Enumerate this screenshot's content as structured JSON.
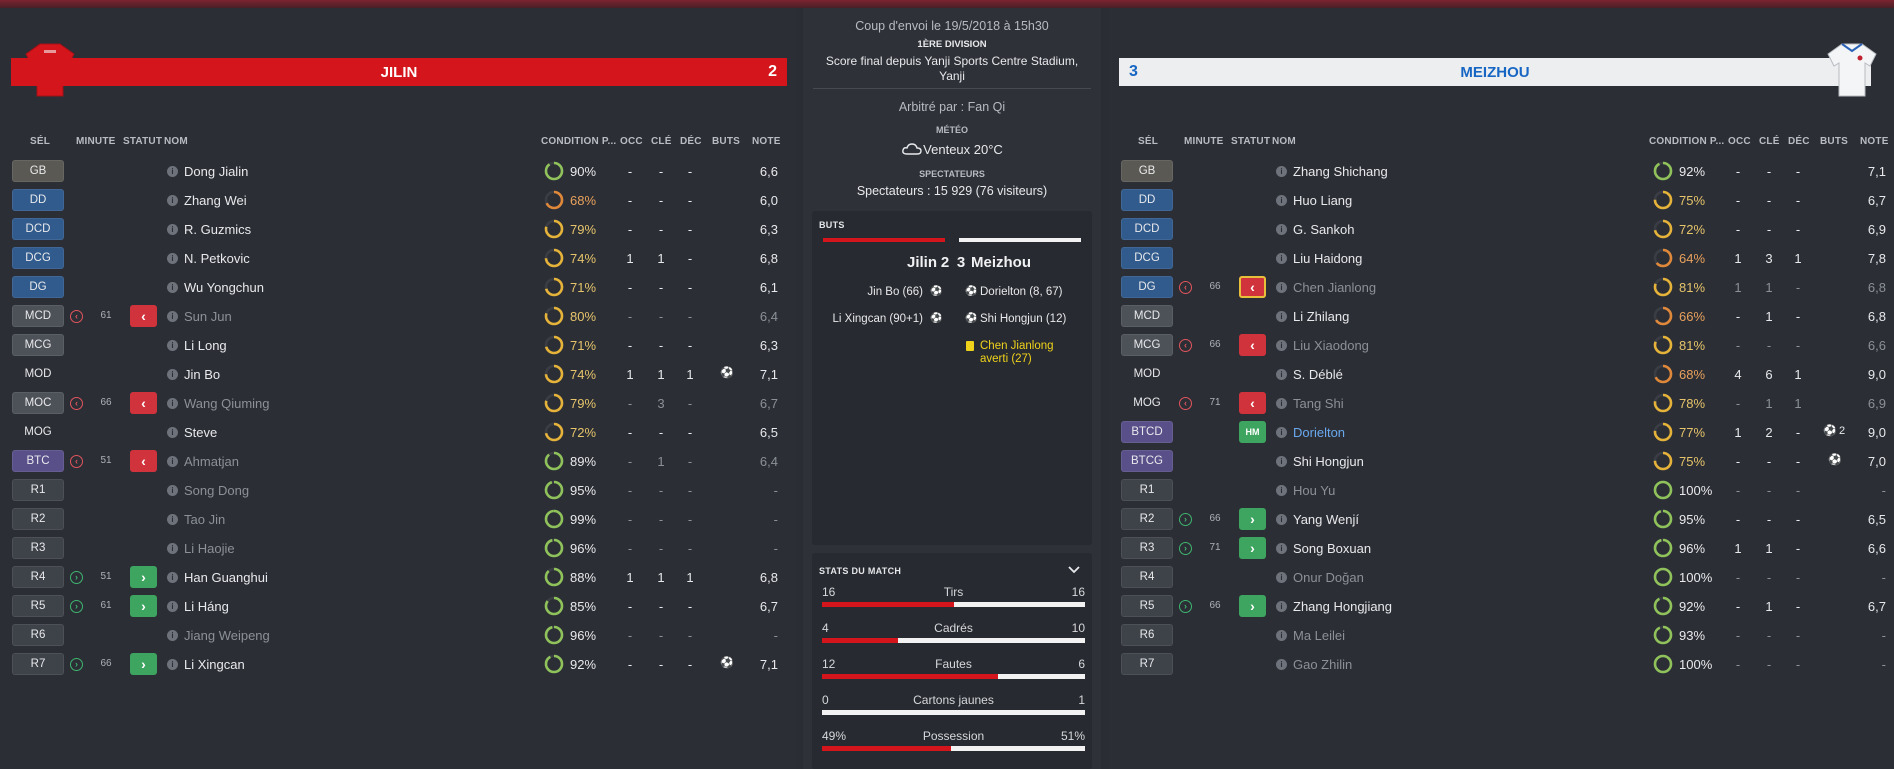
{
  "header": {
    "kickoff": "Coup d'envoi le 19/5/2018 à 15h30",
    "division": "1ÈRE DIVISION",
    "final_line1": "Score final depuis Yanji Sports Centre Stadium,",
    "final_line2": "Yanji",
    "referee": "Arbitré par : Fan Qi",
    "weather_label": "MÉTÉO",
    "weather": "Venteux 20°C",
    "spectators_label": "SPECTATEURS",
    "spectators": "Spectateurs : 15 929 (76 visiteurs)"
  },
  "columns": {
    "sel": "SÉL",
    "minute": "MINUTE",
    "statut": "STATUT",
    "nom": "NOM",
    "condition": "CONDITION P...",
    "occ": "OCC",
    "cle": "CLÉ",
    "dec": "DÉC",
    "buts": "BUTS",
    "note": "NOTE"
  },
  "home": {
    "name": "JILIN",
    "score": "2",
    "kit_color": "#d4151c",
    "players": [
      {
        "pos": "GB",
        "type": "gb",
        "name": "Dong Jialin",
        "cond": "90%",
        "cond_value": 90,
        "occ": "-",
        "cle": "-",
        "dec": "-",
        "goals": "",
        "note": "6,6"
      },
      {
        "pos": "DD",
        "type": "def",
        "name": "Zhang Wei",
        "cond": "68%",
        "cond_value": 68,
        "occ": "-",
        "cle": "-",
        "dec": "-",
        "goals": "",
        "note": "6,0"
      },
      {
        "pos": "DCD",
        "type": "def",
        "name": "R. Guzmics",
        "cond": "79%",
        "cond_value": 79,
        "occ": "-",
        "cle": "-",
        "dec": "-",
        "goals": "",
        "note": "6,3"
      },
      {
        "pos": "DCG",
        "type": "def",
        "name": "N. Petkovic",
        "cond": "74%",
        "cond_value": 74,
        "occ": "1",
        "cle": "1",
        "dec": "-",
        "goals": "",
        "note": "6,8"
      },
      {
        "pos": "DG",
        "type": "def",
        "name": "Wu Yongchun",
        "cond": "71%",
        "cond_value": 71,
        "occ": "-",
        "cle": "-",
        "dec": "-",
        "goals": "",
        "note": "6,1"
      },
      {
        "pos": "MCD",
        "type": "mid",
        "name": "Sun Jun",
        "sub": "out",
        "minute": "61",
        "dim": true,
        "cond": "80%",
        "cond_value": 80,
        "occ": "-",
        "cle": "-",
        "dec": "-",
        "goals": "",
        "note": "6,4"
      },
      {
        "pos": "MCG",
        "type": "mid",
        "name": "Li Long",
        "cond": "71%",
        "cond_value": 71,
        "occ": "-",
        "cle": "-",
        "dec": "-",
        "goals": "",
        "note": "6,3"
      },
      {
        "pos": "MOD",
        "type": "mod",
        "name": "Jin Bo",
        "cond": "74%",
        "cond_value": 74,
        "occ": "1",
        "cle": "1",
        "dec": "1",
        "goals": "1",
        "note": "7,1"
      },
      {
        "pos": "MOC",
        "type": "mid",
        "name": "Wang Qiuming",
        "sub": "out",
        "minute": "66",
        "dim": true,
        "cond": "79%",
        "cond_value": 79,
        "occ": "-",
        "cle": "3",
        "dec": "-",
        "goals": "",
        "note": "6,7"
      },
      {
        "pos": "MOG",
        "type": "mod",
        "name": "Steve",
        "cond": "72%",
        "cond_value": 72,
        "occ": "-",
        "cle": "-",
        "dec": "-",
        "goals": "",
        "note": "6,5"
      },
      {
        "pos": "BTC",
        "type": "att",
        "name": "Ahmatjan",
        "sub": "out",
        "minute": "51",
        "dim": true,
        "cond": "89%",
        "cond_value": 89,
        "occ": "-",
        "cle": "1",
        "dec": "-",
        "goals": "",
        "note": "6,4"
      },
      {
        "pos": "R1",
        "type": "res",
        "name": "Song Dong",
        "dim": true,
        "cond": "95%",
        "cond_value": 95,
        "occ": "-",
        "cle": "-",
        "dec": "-",
        "goals": "",
        "note": "-"
      },
      {
        "pos": "R2",
        "type": "res",
        "name": "Tao Jin",
        "dim": true,
        "cond": "99%",
        "cond_value": 99,
        "occ": "-",
        "cle": "-",
        "dec": "-",
        "goals": "",
        "note": "-"
      },
      {
        "pos": "R3",
        "type": "res",
        "name": "Li Haojie",
        "dim": true,
        "cond": "96%",
        "cond_value": 96,
        "occ": "-",
        "cle": "-",
        "dec": "-",
        "goals": "",
        "note": "-"
      },
      {
        "pos": "R4",
        "type": "res",
        "name": "Han Guanghui",
        "sub": "in",
        "minute": "51",
        "cond": "88%",
        "cond_value": 88,
        "occ": "1",
        "cle": "1",
        "dec": "1",
        "goals": "",
        "note": "6,8"
      },
      {
        "pos": "R5",
        "type": "res",
        "name": "Li Háng",
        "sub": "in",
        "minute": "61",
        "cond": "85%",
        "cond_value": 85,
        "occ": "-",
        "cle": "-",
        "dec": "-",
        "goals": "",
        "note": "6,7"
      },
      {
        "pos": "R6",
        "type": "res",
        "name": "Jiang Weipeng",
        "dim": true,
        "cond": "96%",
        "cond_value": 96,
        "occ": "-",
        "cle": "-",
        "dec": "-",
        "goals": "",
        "note": "-"
      },
      {
        "pos": "R7",
        "type": "res",
        "name": "Li Xingcan",
        "sub": "in",
        "minute": "66",
        "cond": "92%",
        "cond_value": 92,
        "occ": "-",
        "cle": "-",
        "dec": "-",
        "goals": "1",
        "note": "7,1"
      }
    ]
  },
  "away": {
    "name": "MEIZHOU",
    "score": "3",
    "kit_color": "#eceeef",
    "players": [
      {
        "pos": "GB",
        "type": "gb",
        "name": "Zhang Shichang",
        "cond": "92%",
        "cond_value": 92,
        "occ": "-",
        "cle": "-",
        "dec": "-",
        "goals": "",
        "note": "7,1"
      },
      {
        "pos": "DD",
        "type": "def",
        "name": "Huo Liang",
        "cond": "75%",
        "cond_value": 75,
        "occ": "-",
        "cle": "-",
        "dec": "-",
        "goals": "",
        "note": "6,7"
      },
      {
        "pos": "DCD",
        "type": "def",
        "name": "G. Sankoh",
        "cond": "72%",
        "cond_value": 72,
        "occ": "-",
        "cle": "-",
        "dec": "-",
        "goals": "",
        "note": "6,9"
      },
      {
        "pos": "DCG",
        "type": "def",
        "name": "Liu Haidong",
        "cond": "64%",
        "cond_value": 64,
        "occ": "1",
        "cle": "3",
        "dec": "1",
        "goals": "",
        "note": "7,8"
      },
      {
        "pos": "DG",
        "type": "def",
        "name": "Chen Jianlong",
        "sub": "out",
        "minute": "66",
        "selected": true,
        "dim": true,
        "cond": "81%",
        "cond_value": 81,
        "occ": "1",
        "cle": "1",
        "dec": "-",
        "goals": "",
        "note": "6,8"
      },
      {
        "pos": "MCD",
        "type": "mid",
        "name": "Li Zhilang",
        "cond": "66%",
        "cond_value": 66,
        "occ": "-",
        "cle": "1",
        "dec": "-",
        "goals": "",
        "note": "6,8"
      },
      {
        "pos": "MCG",
        "type": "mid",
        "name": "Liu Xiaodong",
        "sub": "out",
        "minute": "66",
        "dim": true,
        "cond": "81%",
        "cond_value": 81,
        "occ": "-",
        "cle": "-",
        "dec": "-",
        "goals": "",
        "note": "6,6"
      },
      {
        "pos": "MOD",
        "type": "mod",
        "name": "S. Déblé",
        "cond": "68%",
        "cond_value": 68,
        "occ": "4",
        "cle": "6",
        "dec": "1",
        "goals": "",
        "note": "9,0"
      },
      {
        "pos": "MOG",
        "type": "mod",
        "name": "Tang Shi",
        "sub": "out",
        "minute": "71",
        "dim": true,
        "cond": "78%",
        "cond_value": 78,
        "occ": "-",
        "cle": "1",
        "dec": "1",
        "goals": "",
        "note": "6,9"
      },
      {
        "pos": "BTCD",
        "type": "att",
        "name": "Dorielton",
        "hm": "HM",
        "blue": true,
        "cond": "77%",
        "cond_value": 77,
        "occ": "1",
        "cle": "2",
        "dec": "-",
        "goals": "2",
        "goals_count": "2",
        "note": "9,0"
      },
      {
        "pos": "BTCG",
        "type": "att",
        "name": "Shi Hongjun",
        "cond": "75%",
        "cond_value": 75,
        "occ": "-",
        "cle": "-",
        "dec": "-",
        "goals": "1",
        "note": "7,0"
      },
      {
        "pos": "R1",
        "type": "res",
        "name": "Hou Yu",
        "dim": true,
        "cond": "100%",
        "cond_value": 100,
        "occ": "-",
        "cle": "-",
        "dec": "-",
        "goals": "",
        "note": "-"
      },
      {
        "pos": "R2",
        "type": "res",
        "name": "Yang Wenjí",
        "sub": "in",
        "minute": "66",
        "cond": "95%",
        "cond_value": 95,
        "occ": "-",
        "cle": "-",
        "dec": "-",
        "goals": "",
        "note": "6,5"
      },
      {
        "pos": "R3",
        "type": "res",
        "name": "Song Boxuan",
        "sub": "in",
        "minute": "71",
        "cond": "96%",
        "cond_value": 96,
        "occ": "1",
        "cle": "1",
        "dec": "-",
        "goals": "",
        "note": "6,6"
      },
      {
        "pos": "R4",
        "type": "res",
        "name": "Onur Doğan",
        "dim": true,
        "cond": "100%",
        "cond_value": 100,
        "occ": "-",
        "cle": "-",
        "dec": "-",
        "goals": "",
        "note": "-"
      },
      {
        "pos": "R5",
        "type": "res",
        "name": "Zhang Hongjiang",
        "sub": "in",
        "minute": "66",
        "cond": "92%",
        "cond_value": 92,
        "occ": "-",
        "cle": "1",
        "dec": "-",
        "goals": "",
        "note": "6,7"
      },
      {
        "pos": "R6",
        "type": "res",
        "name": "Ma Leilei",
        "dim": true,
        "cond": "93%",
        "cond_value": 93,
        "occ": "-",
        "cle": "-",
        "dec": "-",
        "goals": "",
        "note": "-"
      },
      {
        "pos": "R7",
        "type": "res",
        "name": "Gao Zhilin",
        "dim": true,
        "cond": "100%",
        "cond_value": 100,
        "occ": "-",
        "cle": "-",
        "dec": "-",
        "goals": "",
        "note": "-"
      }
    ]
  },
  "goals": {
    "title": "BUTS",
    "home_name": "Jilin",
    "home_score": "2",
    "away_score": "3",
    "away_name": "Meizhou",
    "home_events": [
      "Jin Bo (66)",
      "Li Xingcan (90+1)"
    ],
    "away_events": [
      "Dorielton (8, 67)",
      "Shi Hongjun (12)"
    ],
    "card_event_line1": "Chen Jianlong",
    "card_event_line2": "averti (27)"
  },
  "stats": {
    "title": "STATS DU MATCH",
    "rows": [
      {
        "label": "Tirs",
        "home": "16",
        "away": "16",
        "home_share": 0.5
      },
      {
        "label": "Cadrés",
        "home": "4",
        "away": "10",
        "home_share": 0.29
      },
      {
        "label": "Fautes",
        "home": "12",
        "away": "6",
        "home_share": 0.67
      },
      {
        "label": "Cartons jaunes",
        "home": "0",
        "away": "1",
        "home_share": 0.0
      },
      {
        "label": "Possession",
        "home": "49%",
        "away": "51%",
        "home_share": 0.49
      }
    ]
  },
  "colors": {
    "accent_red": "#d4151c",
    "ring_green": "#8fc25a",
    "ring_yellow": "#e6b33a",
    "ring_orange": "#e0883a",
    "away_blue": "#1766c4"
  }
}
